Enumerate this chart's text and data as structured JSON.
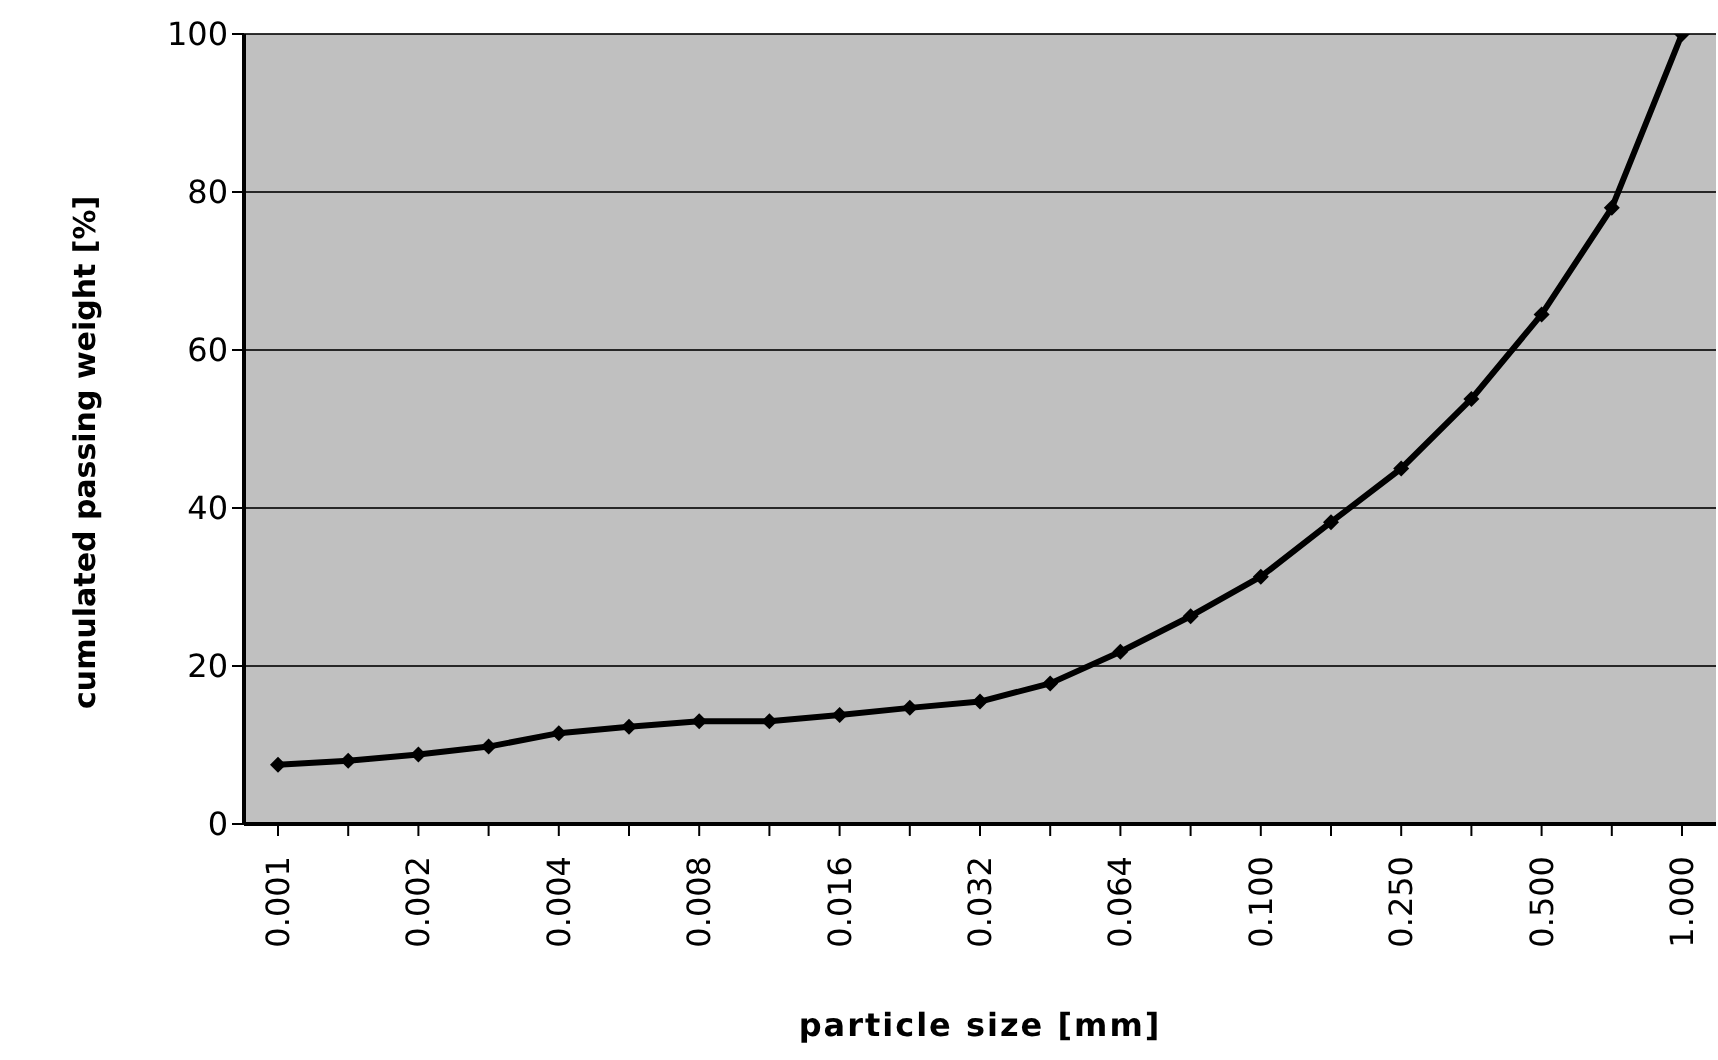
{
  "chart_data": {
    "type": "line",
    "xlabel": "particle size [mm]",
    "ylabel": "cumulated passing weight [%]",
    "categories": [
      "0.001",
      null,
      "0.002",
      null,
      "0.004",
      null,
      "0.008",
      null,
      "0.016",
      null,
      "0.032",
      null,
      "0.064",
      null,
      "0.100",
      null,
      "0.250",
      null,
      "0.500",
      null,
      "1.000"
    ],
    "series": [
      {
        "color": "#000000",
        "values": [
          7.5,
          8,
          8.8,
          9.8,
          11.5,
          12.3,
          13,
          13,
          13.8,
          14.7,
          15.5,
          17.8,
          21.8,
          26.3,
          31.3,
          38.2,
          45,
          53.8,
          64.5,
          78,
          100
        ]
      }
    ],
    "ylim": [
      0,
      100
    ],
    "yticks": [
      0,
      20,
      40,
      60,
      80,
      100
    ],
    "grid": "y",
    "legend": false,
    "marker": "diamond",
    "line_style": "solid"
  }
}
